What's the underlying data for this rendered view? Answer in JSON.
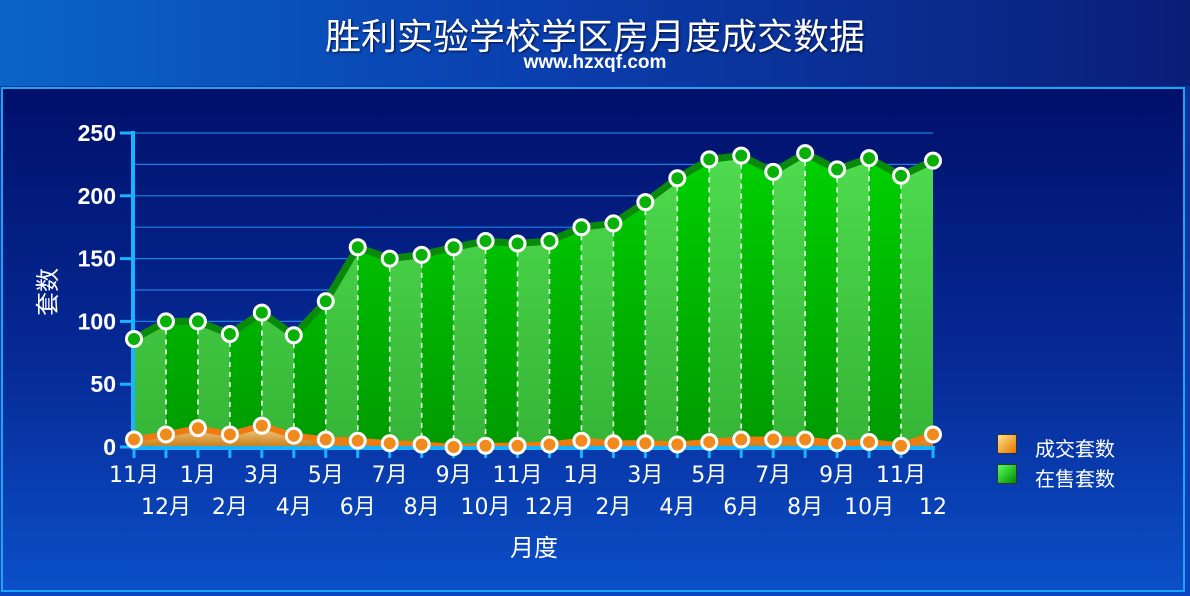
{
  "header": {
    "title": "胜利实验学校学区房月度成交数据",
    "subtitle": "www.hzxqf.com"
  },
  "colors": {
    "background": "#0b3fb0",
    "header_light": "#0a64c8",
    "header_dark": "#0a1e78",
    "border": "#1fa3f5",
    "sold_series": "#f08a1c",
    "sale_series_light": "#4ed64e",
    "sale_series_dark": "#00b000",
    "sale_line": "#0a7a0a"
  },
  "chart_data": {
    "type": "area",
    "title": "胜利实验学校学区房月度成交数据",
    "xlabel": "月度",
    "ylabel": "套数",
    "ylim": [
      0,
      250
    ],
    "yticks": [
      0,
      50,
      100,
      150,
      200,
      250
    ],
    "grid": true,
    "legend_position": "right",
    "categories": [
      "11月",
      "12月",
      "1月",
      "2月",
      "3月",
      "4月",
      "5月",
      "6月",
      "7月",
      "8月",
      "9月",
      "10月",
      "11月",
      "12月",
      "1月",
      "2月",
      "3月",
      "4月",
      "5月",
      "6月",
      "7月",
      "8月",
      "9月",
      "10月",
      "11月",
      "12"
    ],
    "series": [
      {
        "name": "成交套数",
        "color": "#f08a1c",
        "values": [
          6,
          10,
          15,
          10,
          17,
          9,
          6,
          5,
          3,
          2,
          0,
          1,
          1,
          2,
          5,
          3,
          3,
          2,
          4,
          6,
          6,
          6,
          3,
          4,
          1,
          10
        ]
      },
      {
        "name": "在售套数",
        "color": "#00c000",
        "values": [
          86,
          100,
          100,
          90,
          107,
          89,
          116,
          159,
          150,
          153,
          159,
          164,
          162,
          164,
          175,
          178,
          195,
          214,
          229,
          232,
          219,
          234,
          221,
          230,
          216,
          228
        ]
      }
    ]
  }
}
